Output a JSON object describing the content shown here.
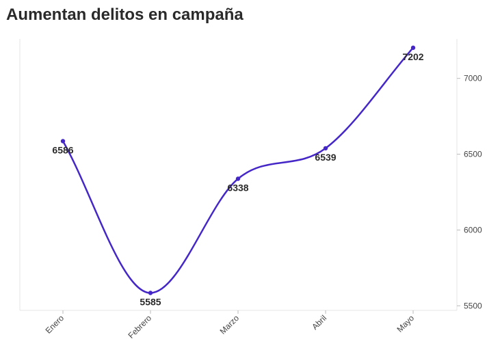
{
  "chart_data": {
    "type": "line",
    "title": "Aumentan delitos en campaña",
    "categories": [
      "Enero",
      "Febrero",
      "Marzo",
      "Abril",
      "Mayo"
    ],
    "values": [
      6586,
      5585,
      6338,
      6539,
      7202
    ],
    "y_ticks": [
      5500,
      6000,
      6500,
      7000
    ],
    "ylim": [
      5470,
      7260
    ],
    "y_axis_side": "right",
    "grid": false,
    "line_color": "#4527c7",
    "label_color": "#2a2a2a"
  }
}
